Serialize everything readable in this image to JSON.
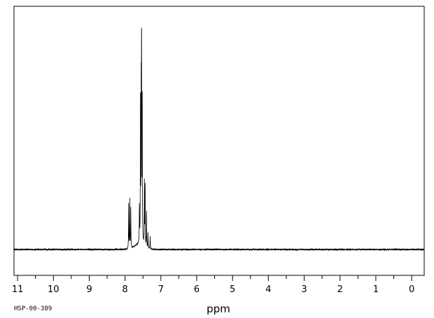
{
  "chart_data": {
    "type": "line",
    "title": "",
    "xlabel": "ppm",
    "ylabel": "",
    "xlim": [
      11.1,
      -0.35
    ],
    "ylim": [
      0,
      1
    ],
    "x_reversed": true,
    "grid": false,
    "legend": "none",
    "x_ticks": [
      11,
      10,
      9,
      8,
      7,
      6,
      5,
      4,
      3,
      2,
      1,
      0
    ],
    "x_tick_labels": [
      "11",
      "10",
      "9",
      "8",
      "7",
      "6",
      "5",
      "4",
      "3",
      "2",
      "1",
      "0"
    ],
    "series": [
      {
        "color": "#000000",
        "baseline": 0.0,
        "peaks": [
          {
            "ppm": 7.9,
            "height": 0.2
          },
          {
            "ppm": 7.87,
            "height": 0.22
          },
          {
            "ppm": 7.84,
            "height": 0.18
          },
          {
            "ppm": 7.6,
            "height": 0.16
          },
          {
            "ppm": 7.57,
            "height": 0.63
          },
          {
            "ppm": 7.55,
            "height": 0.61
          },
          {
            "ppm": 7.54,
            "height": 1.0
          },
          {
            "ppm": 7.52,
            "height": 0.63
          },
          {
            "ppm": 7.46,
            "height": 0.29
          },
          {
            "ppm": 7.44,
            "height": 0.27
          },
          {
            "ppm": 7.4,
            "height": 0.16
          },
          {
            "ppm": 7.36,
            "height": 0.07
          },
          {
            "ppm": 7.3,
            "height": 0.06
          }
        ]
      }
    ]
  },
  "footer": {
    "code": "HSP-00-389"
  }
}
